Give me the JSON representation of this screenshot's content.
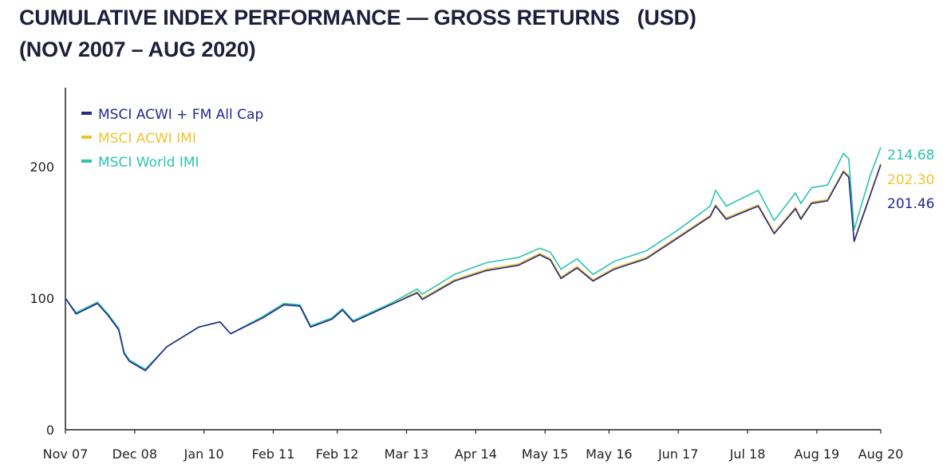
{
  "title_line1": "CUMULATIVE INDEX PERFORMANCE — GROSS RETURNS   (USD)",
  "title_line2": "(NOV 2007 – AUG 2020)",
  "chart_data": {
    "type": "line",
    "title": "CUMULATIVE INDEX PERFORMANCE — GROSS RETURNS   (USD) (NOV 2007 – AUG 2020)",
    "xlabel": "",
    "ylabel": "",
    "ylim": [
      0,
      260
    ],
    "yticks": [
      0,
      100,
      200
    ],
    "ytick_labels": [
      "0",
      "100",
      "200"
    ],
    "xlim": [
      "2007-11",
      "2020-08"
    ],
    "xticks": [
      "2007-11",
      "2008-12",
      "2010-01",
      "2011-02",
      "2012-02",
      "2013-03",
      "2014-04",
      "2015-05",
      "2016-05",
      "2017-06",
      "2018-07",
      "2019-08",
      "2020-08"
    ],
    "xtick_labels": [
      "Nov 07",
      "Dec 08",
      "Jan 10",
      "Feb 11",
      "Feb 12",
      "Mar 13",
      "Apr 14",
      "May 15",
      "May 16",
      "Jun 17",
      "Jul 18",
      "Aug 19",
      "Aug 20"
    ],
    "grid": false,
    "legend_position": "top-left",
    "series": [
      {
        "name": "MSCI ACWI + FM All Cap",
        "color": "#232a8c",
        "end_label": "201.46",
        "points": [
          [
            "2007-11",
            100
          ],
          [
            "2008-01",
            88
          ],
          [
            "2008-05",
            96
          ],
          [
            "2008-07",
            87
          ],
          [
            "2008-09",
            76
          ],
          [
            "2008-10",
            58
          ],
          [
            "2008-11",
            52
          ],
          [
            "2009-02",
            45
          ],
          [
            "2009-06",
            63
          ],
          [
            "2009-12",
            78
          ],
          [
            "2010-04",
            82
          ],
          [
            "2010-06",
            73
          ],
          [
            "2010-12",
            85
          ],
          [
            "2011-04",
            95
          ],
          [
            "2011-07",
            94
          ],
          [
            "2011-09",
            78
          ],
          [
            "2012-01",
            84
          ],
          [
            "2012-03",
            91
          ],
          [
            "2012-05",
            82
          ],
          [
            "2012-12",
            95
          ],
          [
            "2013-05",
            104
          ],
          [
            "2013-06",
            99
          ],
          [
            "2013-12",
            113
          ],
          [
            "2014-06",
            121
          ],
          [
            "2014-12",
            125
          ],
          [
            "2015-04",
            133
          ],
          [
            "2015-06",
            129
          ],
          [
            "2015-08",
            115
          ],
          [
            "2015-11",
            123
          ],
          [
            "2016-02",
            113
          ],
          [
            "2016-06",
            122
          ],
          [
            "2016-12",
            130
          ],
          [
            "2017-06",
            146
          ],
          [
            "2017-12",
            162
          ],
          [
            "2018-01",
            170
          ],
          [
            "2018-03",
            160
          ],
          [
            "2018-09",
            170
          ],
          [
            "2018-12",
            149
          ],
          [
            "2019-04",
            168
          ],
          [
            "2019-05",
            160
          ],
          [
            "2019-07",
            172
          ],
          [
            "2019-10",
            174
          ],
          [
            "2020-01",
            196
          ],
          [
            "2020-02",
            192
          ],
          [
            "2020-03",
            143
          ],
          [
            "2020-06",
            178
          ],
          [
            "2020-08",
            201.46
          ]
        ]
      },
      {
        "name": "MSCI ACWI IMI",
        "color": "#f2c230",
        "end_label": "202.30",
        "points": [
          [
            "2007-11",
            100
          ],
          [
            "2008-01",
            88
          ],
          [
            "2008-05",
            96
          ],
          [
            "2008-07",
            87
          ],
          [
            "2008-09",
            76
          ],
          [
            "2008-10",
            58
          ],
          [
            "2008-11",
            52
          ],
          [
            "2009-02",
            45
          ],
          [
            "2009-06",
            63
          ],
          [
            "2009-12",
            78
          ],
          [
            "2010-04",
            82
          ],
          [
            "2010-06",
            73
          ],
          [
            "2010-12",
            85
          ],
          [
            "2011-04",
            95
          ],
          [
            "2011-07",
            94
          ],
          [
            "2011-09",
            78
          ],
          [
            "2012-01",
            84
          ],
          [
            "2012-03",
            91
          ],
          [
            "2012-05",
            82
          ],
          [
            "2012-12",
            95
          ],
          [
            "2013-05",
            105
          ],
          [
            "2013-06",
            100
          ],
          [
            "2013-12",
            114
          ],
          [
            "2014-06",
            122
          ],
          [
            "2014-12",
            126
          ],
          [
            "2015-04",
            134
          ],
          [
            "2015-06",
            130
          ],
          [
            "2015-08",
            116
          ],
          [
            "2015-11",
            124
          ],
          [
            "2016-02",
            114
          ],
          [
            "2016-06",
            123
          ],
          [
            "2016-12",
            131
          ],
          [
            "2017-06",
            147
          ],
          [
            "2017-12",
            163
          ],
          [
            "2018-01",
            171
          ],
          [
            "2018-03",
            161
          ],
          [
            "2018-09",
            171
          ],
          [
            "2018-12",
            150
          ],
          [
            "2019-04",
            169
          ],
          [
            "2019-05",
            161
          ],
          [
            "2019-07",
            173
          ],
          [
            "2019-10",
            175
          ],
          [
            "2020-01",
            197
          ],
          [
            "2020-02",
            193
          ],
          [
            "2020-03",
            144
          ],
          [
            "2020-06",
            179
          ],
          [
            "2020-08",
            202.3
          ]
        ]
      },
      {
        "name": "MSCI World IMI",
        "color": "#2bc5b0",
        "end_label": "214.68",
        "points": [
          [
            "2007-11",
            100
          ],
          [
            "2008-01",
            89
          ],
          [
            "2008-05",
            97
          ],
          [
            "2008-07",
            88
          ],
          [
            "2008-09",
            77
          ],
          [
            "2008-10",
            59
          ],
          [
            "2008-11",
            53
          ],
          [
            "2009-02",
            46
          ],
          [
            "2009-06",
            63
          ],
          [
            "2009-12",
            78
          ],
          [
            "2010-04",
            82
          ],
          [
            "2010-06",
            73
          ],
          [
            "2010-12",
            86
          ],
          [
            "2011-04",
            96
          ],
          [
            "2011-07",
            95
          ],
          [
            "2011-09",
            79
          ],
          [
            "2012-01",
            85
          ],
          [
            "2012-03",
            92
          ],
          [
            "2012-05",
            83
          ],
          [
            "2012-12",
            96
          ],
          [
            "2013-05",
            107
          ],
          [
            "2013-06",
            103
          ],
          [
            "2013-12",
            118
          ],
          [
            "2014-06",
            127
          ],
          [
            "2014-12",
            131
          ],
          [
            "2015-04",
            138
          ],
          [
            "2015-06",
            135
          ],
          [
            "2015-08",
            122
          ],
          [
            "2015-11",
            130
          ],
          [
            "2016-02",
            118
          ],
          [
            "2016-06",
            128
          ],
          [
            "2016-12",
            136
          ],
          [
            "2017-06",
            152
          ],
          [
            "2017-12",
            170
          ],
          [
            "2018-01",
            182
          ],
          [
            "2018-03",
            170
          ],
          [
            "2018-09",
            182
          ],
          [
            "2018-12",
            159
          ],
          [
            "2019-04",
            180
          ],
          [
            "2019-05",
            172
          ],
          [
            "2019-07",
            184
          ],
          [
            "2019-10",
            186
          ],
          [
            "2020-01",
            210
          ],
          [
            "2020-02",
            206
          ],
          [
            "2020-03",
            152
          ],
          [
            "2020-06",
            193
          ],
          [
            "2020-08",
            214.68
          ]
        ]
      }
    ]
  }
}
